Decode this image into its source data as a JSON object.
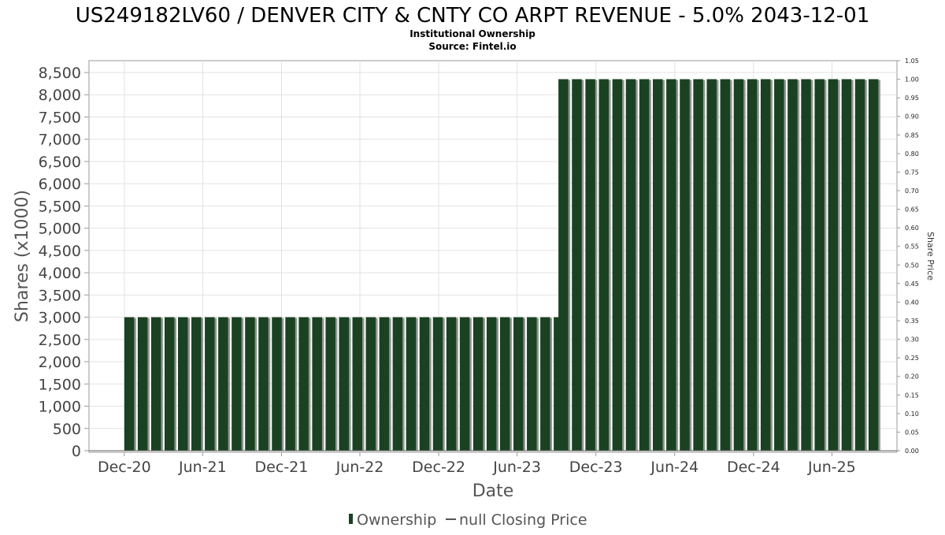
{
  "chart_data": {
    "type": "bar",
    "title": "US249182LV60 / DENVER CITY & CNTY CO ARPT REVENUE - 5.0% 2043-12-01",
    "subtitle": "Institutional Ownership",
    "source": "Source: Fintel.io",
    "xlabel": "Date",
    "ylabel": "Shares (x1000)",
    "y2label": "Share Price",
    "ylim": [
      0,
      8500
    ],
    "y2lim": [
      0,
      1.05
    ],
    "xlim": [
      "2020-09-10",
      "2025-10-30"
    ],
    "grid": true,
    "legend_position": "bottom",
    "y_ticks": [
      "0",
      "500",
      "1,000",
      "1,500",
      "2,000",
      "2,500",
      "3,000",
      "3,500",
      "4,000",
      "4,500",
      "5,000",
      "5,500",
      "6,000",
      "6,500",
      "7,000",
      "7,500",
      "8,000",
      "8,500"
    ],
    "y2_ticks": [
      "0.00",
      "0.05",
      "0.10",
      "0.15",
      "0.20",
      "0.25",
      "0.30",
      "0.35",
      "0.40",
      "0.45",
      "0.50",
      "0.55",
      "0.60",
      "0.65",
      "0.70",
      "0.75",
      "0.80",
      "0.85",
      "0.90",
      "0.95",
      "1.00",
      "1.05"
    ],
    "x_ticks": [
      {
        "label": "Dec-20",
        "date": "2020-12-01"
      },
      {
        "label": "Jun-21",
        "date": "2021-06-01"
      },
      {
        "label": "Dec-21",
        "date": "2021-12-01"
      },
      {
        "label": "Jun-22",
        "date": "2022-06-01"
      },
      {
        "label": "Dec-22",
        "date": "2022-12-01"
      },
      {
        "label": "Jun-23",
        "date": "2023-06-01"
      },
      {
        "label": "Dec-23",
        "date": "2023-12-01"
      },
      {
        "label": "Jun-24",
        "date": "2024-06-01"
      },
      {
        "label": "Dec-24",
        "date": "2024-12-01"
      },
      {
        "label": "Jun-25",
        "date": "2025-06-01"
      }
    ],
    "series": [
      {
        "name": "Ownership",
        "type": "bar",
        "color": "#1a4222",
        "segments": [
          {
            "start": "2020-12-01",
            "end": "2023-08-25",
            "value": 3000,
            "count": 33
          },
          {
            "start": "2023-09-05",
            "end": "2025-08-25",
            "value": 8350,
            "count": 24
          }
        ]
      },
      {
        "name": "null Closing Price",
        "type": "line",
        "color": "#555555",
        "values": []
      }
    ]
  }
}
